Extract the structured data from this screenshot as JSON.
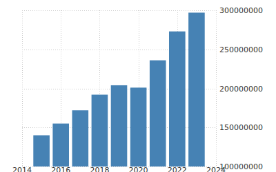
{
  "chart_data": {
    "type": "bar",
    "x": [
      2015,
      2016,
      2017,
      2018,
      2019,
      2020,
      2021,
      2022,
      2023
    ],
    "values": [
      140000000,
      155000000,
      172000000,
      192000000,
      204000000,
      201000000,
      236000000,
      273000000,
      297000000
    ],
    "color": "#4682b4",
    "xlim": [
      2014,
      2024
    ],
    "xticks": [
      2014,
      2016,
      2018,
      2020,
      2022,
      2024
    ],
    "ylim": [
      100000000,
      300000000
    ],
    "yticks": [
      100000000,
      150000000,
      200000000,
      250000000,
      300000000
    ],
    "grid": true
  }
}
